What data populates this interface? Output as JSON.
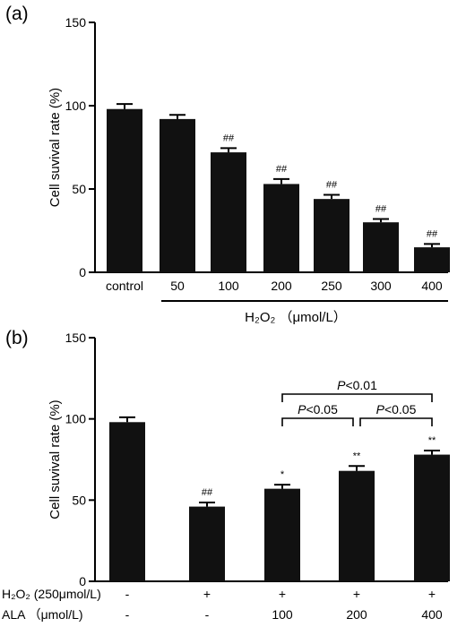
{
  "chart_data": [
    {
      "type": "bar",
      "panel_label": "(a)",
      "ylabel": "Cell suvival rate (%)",
      "ylim": [
        0,
        150
      ],
      "yticks": [
        "0",
        "50",
        "100",
        "150"
      ],
      "categories": [
        "control",
        "50",
        "100",
        "200",
        "250",
        "300",
        "400"
      ],
      "values": [
        98,
        92,
        72,
        53,
        44,
        30,
        15
      ],
      "errors": [
        3,
        2.5,
        2.5,
        3,
        2.5,
        2,
        2
      ],
      "annotations": [
        "",
        "",
        "##",
        "##",
        "##",
        "##",
        "##"
      ],
      "group_label": "H₂O₂ （μmol/L）",
      "bar_color": "#111111"
    },
    {
      "type": "bar",
      "panel_label": "(b)",
      "ylabel": "Cell suvival rate (%)",
      "ylim": [
        0,
        150
      ],
      "yticks": [
        "0",
        "50",
        "100",
        "150"
      ],
      "values": [
        98,
        46,
        57,
        68,
        78
      ],
      "errors": [
        3,
        2.5,
        2.5,
        3,
        2.5
      ],
      "annotations": [
        "",
        "##",
        "*",
        "**",
        "**"
      ],
      "rows": [
        {
          "label": "H₂O₂ (250μmol/L)",
          "values": [
            "-",
            "+",
            "+",
            "+",
            "+"
          ]
        },
        {
          "label": "ALA （μmol/L)",
          "values": [
            "-",
            "-",
            "100",
            "200",
            "400"
          ]
        }
      ],
      "comparisons": [
        {
          "from": 2,
          "to": 4,
          "label_p": "P",
          "label_rest": "<0.01"
        },
        {
          "from": 2,
          "to": 3,
          "label_p": "P",
          "label_rest": "<0.05"
        },
        {
          "from": 3,
          "to": 4,
          "label_p": "P",
          "label_rest": "<0.05"
        }
      ],
      "bar_color": "#111111"
    }
  ]
}
